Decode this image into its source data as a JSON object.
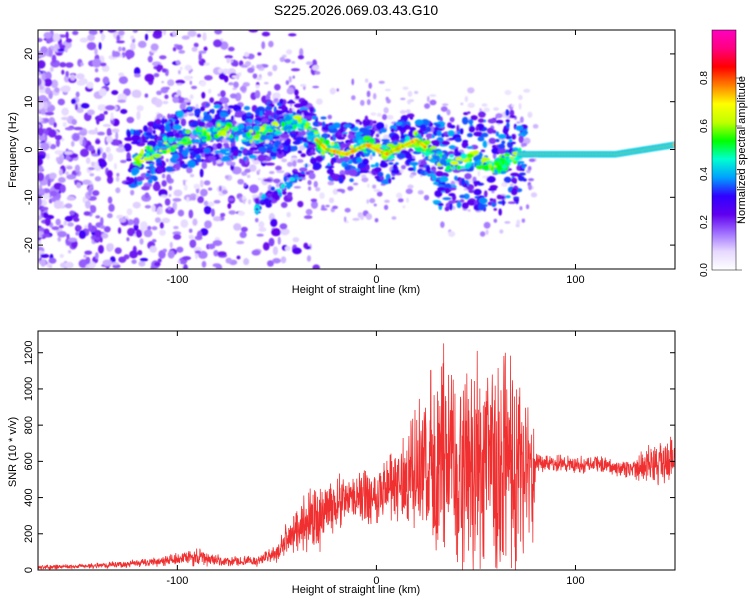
{
  "chart_data": [
    {
      "type": "heatmap",
      "title": "S225.2026.069.03.43.G10",
      "xlabel": "Height of straight line (km)",
      "ylabel": "Frequency (Hz)",
      "xlim": [
        -170,
        150
      ],
      "ylim": [
        -25,
        25
      ],
      "xticks": [
        -100,
        0,
        100
      ],
      "yticks": [
        -20,
        -10,
        0,
        10,
        20
      ],
      "colorbar": {
        "label": "Normalized spectral amplitude",
        "range": [
          0.0,
          1.0
        ],
        "ticks": [
          "0.0",
          "0.2",
          "0.4",
          "0.6",
          "0.8"
        ],
        "colors": [
          "#ffffff",
          "#e6d9ff",
          "#a070ff",
          "#6000ee",
          "#3000ff",
          "#00a0ff",
          "#00ffd0",
          "#00ff00",
          "#c0ff00",
          "#ffff00",
          "#ff8000",
          "#ff0000",
          "#ff0080",
          "#ff00c0"
        ]
      },
      "ridge": {
        "x": [
          -120,
          -100,
          -80,
          -60,
          -40,
          -25,
          -15,
          -5,
          5,
          20,
          35,
          50,
          60,
          70,
          80,
          100,
          120,
          135,
          150
        ],
        "y": [
          -2,
          2,
          4,
          3,
          6,
          0,
          -1,
          1,
          -1,
          2,
          -3,
          -2,
          -4,
          -1,
          -1,
          -1,
          -1,
          0,
          1
        ]
      }
    },
    {
      "type": "line",
      "xlabel": "Height of straight line (km)",
      "ylabel": "SNR (10 * v/v)",
      "xlim": [
        -170,
        150
      ],
      "ylim": [
        0,
        1320
      ],
      "xticks": [
        -100,
        0,
        100
      ],
      "yticks": [
        0,
        200,
        400,
        600,
        800,
        1000,
        1200
      ],
      "color": "#f03030",
      "envelope": {
        "x": [
          -170,
          -150,
          -120,
          -100,
          -90,
          -75,
          -60,
          -50,
          -45,
          -35,
          -30,
          -25,
          -20,
          -10,
          0,
          10,
          17,
          25,
          30,
          35,
          45,
          55,
          62,
          70,
          75,
          79,
          80,
          90,
          100,
          110,
          120,
          130,
          140,
          150
        ],
        "center": [
          15,
          20,
          35,
          60,
          70,
          45,
          50,
          90,
          170,
          280,
          280,
          320,
          380,
          400,
          420,
          480,
          520,
          560,
          600,
          620,
          580,
          560,
          600,
          560,
          540,
          540,
          590,
          590,
          580,
          590,
          560,
          560,
          600,
          620
        ],
        "spread": [
          15,
          15,
          25,
          40,
          60,
          30,
          35,
          60,
          100,
          200,
          200,
          200,
          180,
          150,
          200,
          250,
          350,
          500,
          600,
          650,
          700,
          700,
          800,
          700,
          500,
          400,
          60,
          55,
          50,
          60,
          60,
          70,
          150,
          180
        ]
      }
    }
  ]
}
